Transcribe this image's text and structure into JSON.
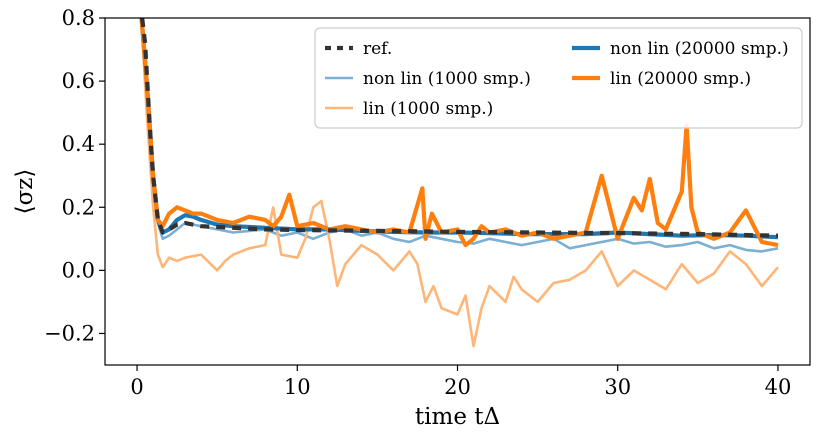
{
  "chart_data": {
    "type": "line",
    "title": "",
    "xlabel": "time tΔ",
    "ylabel": "⟨σz⟩",
    "xlim": [
      -2,
      42
    ],
    "ylim": [
      -0.3,
      0.8
    ],
    "xticks": [
      0,
      10,
      20,
      30,
      40
    ],
    "xtick_labels": [
      "0",
      "10",
      "20",
      "30",
      "40"
    ],
    "yticks": [
      -0.2,
      0.0,
      0.2,
      0.4,
      0.6,
      0.8
    ],
    "ytick_labels": [
      "−0.2",
      "0.0",
      "0.2",
      "0.4",
      "0.6",
      "0.8"
    ],
    "grid": false,
    "legend_position": "top-right",
    "series": [
      {
        "name": "ref.",
        "color": "#333333",
        "style": "dashed",
        "x": [
          0.2,
          0.5,
          0.8,
          1.0,
          1.3,
          1.6,
          2.0,
          2.5,
          3.0,
          4,
          6,
          8,
          10,
          15,
          20,
          25,
          30,
          35,
          40
        ],
        "y": [
          0.85,
          0.72,
          0.45,
          0.3,
          0.16,
          0.12,
          0.13,
          0.145,
          0.15,
          0.14,
          0.135,
          0.13,
          0.128,
          0.125,
          0.122,
          0.12,
          0.118,
          0.115,
          0.11
        ]
      },
      {
        "name": "non lin (1000 smp.)",
        "color": "#7bafd4",
        "style": "solid-thin",
        "x": [
          0.2,
          0.6,
          1.0,
          1.3,
          1.6,
          2.0,
          2.5,
          3.0,
          4,
          5,
          6,
          7,
          8,
          9,
          10,
          11,
          12,
          13,
          14,
          15,
          16,
          17,
          18,
          19,
          20,
          21,
          22,
          23,
          24,
          25,
          26,
          27,
          28,
          29,
          30,
          31,
          32,
          33,
          34,
          35,
          36,
          37,
          38,
          39,
          40
        ],
        "y": [
          0.85,
          0.6,
          0.3,
          0.15,
          0.1,
          0.11,
          0.13,
          0.15,
          0.14,
          0.13,
          0.12,
          0.125,
          0.13,
          0.11,
          0.12,
          0.1,
          0.12,
          0.13,
          0.11,
          0.12,
          0.1,
          0.09,
          0.11,
          0.1,
          0.09,
          0.085,
          0.1,
          0.09,
          0.08,
          0.09,
          0.1,
          0.07,
          0.08,
          0.09,
          0.1,
          0.085,
          0.09,
          0.075,
          0.08,
          0.09,
          0.07,
          0.08,
          0.065,
          0.06,
          0.07
        ]
      },
      {
        "name": "lin (1000 smp.)",
        "color": "#ffb577",
        "style": "solid-thin",
        "x": [
          0.2,
          0.6,
          1.0,
          1.3,
          1.6,
          2.0,
          2.5,
          3,
          4,
          5,
          5.5,
          6,
          7,
          8,
          8.5,
          9,
          10,
          10.5,
          11,
          11.5,
          12,
          12.5,
          13,
          14,
          15,
          16,
          17,
          17.5,
          18,
          18.5,
          19,
          20,
          20.5,
          21,
          21.5,
          22,
          23,
          23.5,
          24,
          25,
          26,
          27,
          28,
          29,
          30,
          31,
          32,
          33,
          34,
          35,
          36,
          37,
          38,
          39,
          40
        ],
        "y": [
          0.85,
          0.5,
          0.2,
          0.05,
          0.01,
          0.04,
          0.03,
          0.04,
          0.05,
          0.0,
          0.03,
          0.05,
          0.07,
          0.08,
          0.2,
          0.05,
          0.04,
          0.1,
          0.2,
          0.22,
          0.1,
          -0.05,
          0.02,
          0.08,
          0.05,
          0.0,
          0.06,
          0.02,
          -0.1,
          -0.05,
          -0.12,
          -0.14,
          -0.08,
          -0.24,
          -0.12,
          -0.05,
          -0.1,
          -0.02,
          -0.06,
          -0.1,
          -0.04,
          -0.03,
          0.0,
          0.06,
          -0.05,
          0.0,
          -0.03,
          -0.06,
          0.02,
          -0.04,
          -0.01,
          0.06,
          0.02,
          -0.05,
          0.01
        ]
      },
      {
        "name": "non lin (20000 smp.)",
        "color": "#1f77b4",
        "style": "solid-thick",
        "x": [
          0.2,
          0.6,
          1.0,
          1.3,
          1.6,
          2.0,
          2.5,
          3.0,
          3.5,
          4,
          5,
          6,
          8,
          10,
          12,
          14,
          16,
          18,
          20,
          22,
          24,
          26,
          28,
          30,
          32,
          34,
          36,
          38,
          40
        ],
        "y": [
          0.85,
          0.6,
          0.3,
          0.16,
          0.12,
          0.13,
          0.16,
          0.175,
          0.17,
          0.16,
          0.145,
          0.14,
          0.135,
          0.13,
          0.13,
          0.125,
          0.122,
          0.12,
          0.12,
          0.118,
          0.115,
          0.115,
          0.115,
          0.12,
          0.115,
          0.11,
          0.112,
          0.11,
          0.105
        ]
      },
      {
        "name": "lin (20000 smp.)",
        "color": "#ff7f0e",
        "style": "solid-thick",
        "x": [
          0.2,
          0.6,
          1.0,
          1.3,
          1.6,
          2.0,
          2.5,
          3.0,
          3.5,
          4,
          5,
          6,
          7,
          8,
          8.5,
          9,
          9.5,
          10,
          11,
          12,
          13,
          14,
          15,
          16,
          17,
          17.8,
          18,
          18.4,
          19,
          20,
          20.5,
          21,
          21.5,
          22,
          23,
          24,
          25,
          26,
          27,
          28,
          29,
          29.5,
          30,
          31,
          31.5,
          32,
          32.5,
          33,
          34,
          34.3,
          34.6,
          35,
          36,
          37,
          38,
          39,
          40
        ],
        "y": [
          0.85,
          0.6,
          0.3,
          0.16,
          0.14,
          0.18,
          0.2,
          0.19,
          0.18,
          0.18,
          0.16,
          0.15,
          0.17,
          0.16,
          0.14,
          0.17,
          0.24,
          0.14,
          0.15,
          0.13,
          0.14,
          0.13,
          0.12,
          0.13,
          0.12,
          0.26,
          0.1,
          0.18,
          0.12,
          0.13,
          0.08,
          0.1,
          0.14,
          0.12,
          0.13,
          0.11,
          0.12,
          0.1,
          0.11,
          0.12,
          0.3,
          0.2,
          0.1,
          0.23,
          0.19,
          0.29,
          0.15,
          0.13,
          0.25,
          0.46,
          0.2,
          0.12,
          0.1,
          0.12,
          0.19,
          0.09,
          0.08
        ]
      }
    ]
  }
}
